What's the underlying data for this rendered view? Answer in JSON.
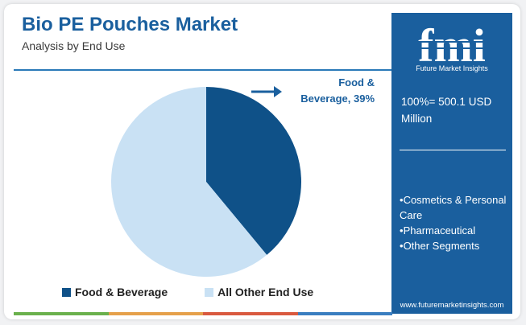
{
  "chart_data": {
    "type": "pie",
    "title": "Bio PE Pouches Market",
    "subtitle": "Analysis by End Use",
    "categories": [
      "Food & Beverage",
      "All Other End Use"
    ],
    "values": [
      39,
      61
    ],
    "colors": [
      "#0f5188",
      "#c9e1f4"
    ],
    "annotations": [
      {
        "category": "Food & Beverage",
        "line1": "Food &",
        "line2": "Beverage, 39%"
      }
    ],
    "legend": {
      "position": "bottom"
    }
  },
  "sidebar": {
    "logo_text": "fmi",
    "logo_caption": "Future Market Insights",
    "total_label": "100%= 500.1 USD Million",
    "segments": [
      "Cosmetics & Personal Care",
      "Pharmaceutical",
      "Other Segments"
    ],
    "url": "www.futuremarketinsights.com",
    "bg_color": "#1a5f9e"
  },
  "bottom_bar_colors": [
    "#6ab04c",
    "#e5a04a",
    "#d9593f",
    "#3a7ec0"
  ]
}
